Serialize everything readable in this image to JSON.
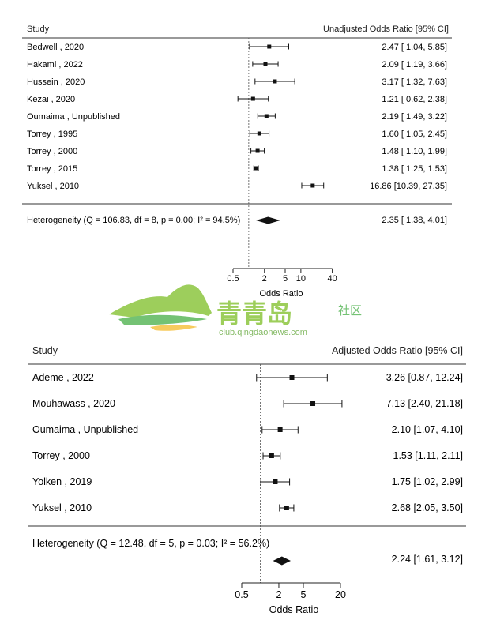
{
  "chart_data": [
    {
      "type": "forest",
      "scale": "log",
      "header_study": "Study",
      "header_effect": "Unadjusted Odds Ratio [95% CI]",
      "xlabel": "Odds Ratio",
      "xticks": [
        0.5,
        2,
        5,
        10,
        40
      ],
      "xtick_labels": [
        "0.5",
        "2",
        "5",
        "10",
        "40"
      ],
      "null_line": 1,
      "studies": [
        {
          "label": "Bedwell , 2020",
          "or": 2.47,
          "lo": 1.04,
          "hi": 5.85,
          "text": "2.47 [ 1.04,  5.85]"
        },
        {
          "label": "Hakami , 2022",
          "or": 2.09,
          "lo": 1.19,
          "hi": 3.66,
          "text": "2.09 [ 1.19,  3.66]"
        },
        {
          "label": "Hussein , 2020",
          "or": 3.17,
          "lo": 1.32,
          "hi": 7.63,
          "text": "3.17 [ 1.32,  7.63]"
        },
        {
          "label": "Kezai , 2020",
          "or": 1.21,
          "lo": 0.62,
          "hi": 2.38,
          "text": "1.21 [ 0.62,  2.38]"
        },
        {
          "label": "Oumaima , Unpublished",
          "or": 2.19,
          "lo": 1.49,
          "hi": 3.22,
          "text": "2.19 [ 1.49,  3.22]"
        },
        {
          "label": "Torrey , 1995",
          "or": 1.6,
          "lo": 1.05,
          "hi": 2.45,
          "text": "1.60 [ 1.05,  2.45]"
        },
        {
          "label": "Torrey , 2000",
          "or": 1.48,
          "lo": 1.1,
          "hi": 1.99,
          "text": "1.48 [ 1.10,  1.99]"
        },
        {
          "label": "Torrey , 2015",
          "or": 1.38,
          "lo": 1.25,
          "hi": 1.53,
          "text": "1.38 [ 1.25,  1.53]"
        },
        {
          "label": "Yuksel , 2010",
          "or": 16.86,
          "lo": 10.39,
          "hi": 27.35,
          "text": "16.86 [10.39, 27.35]"
        }
      ],
      "summary": {
        "label": "Heterogeneity (Q = 106.83, df = 8, p = 0.00; I² = 94.5%)",
        "or": 2.35,
        "lo": 1.38,
        "hi": 4.01,
        "text": "2.35 [ 1.38,  4.01]"
      }
    },
    {
      "type": "forest",
      "scale": "log",
      "header_study": "Study",
      "header_effect": "Adjusted Odds Ratio [95% CI]",
      "xlabel": "Odds Ratio",
      "xticks": [
        0.5,
        2,
        5,
        20
      ],
      "xtick_labels": [
        "0.5",
        "2",
        "5",
        "20"
      ],
      "null_line": 1,
      "studies": [
        {
          "label": "Ademe , 2022",
          "or": 3.26,
          "lo": 0.87,
          "hi": 12.24,
          "text": "3.26 [0.87, 12.24]"
        },
        {
          "label": "Mouhawass , 2020",
          "or": 7.13,
          "lo": 2.4,
          "hi": 21.18,
          "text": "7.13 [2.40, 21.18]"
        },
        {
          "label": "Oumaima , Unpublished",
          "or": 2.1,
          "lo": 1.07,
          "hi": 4.1,
          "text": "2.10 [1.07,  4.10]"
        },
        {
          "label": "Torrey , 2000",
          "or": 1.53,
          "lo": 1.11,
          "hi": 2.11,
          "text": "1.53 [1.11,  2.11]"
        },
        {
          "label": "Yolken , 2019",
          "or": 1.75,
          "lo": 1.02,
          "hi": 2.99,
          "text": "1.75 [1.02,  2.99]"
        },
        {
          "label": "Yuksel , 2010",
          "or": 2.68,
          "lo": 2.05,
          "hi": 3.5,
          "text": "2.68 [2.05,  3.50]"
        }
      ],
      "summary": {
        "label": "Heterogeneity (Q = 12.48, df = 5, p = 0.03; I² = 56.2%)",
        "or": 2.24,
        "lo": 1.61,
        "hi": 3.12,
        "text": "2.24 [1.61,  3.12]"
      }
    }
  ],
  "watermark": {
    "title": "青青岛",
    "suffix": "社区",
    "url": "club.qingdaonews.com",
    "colors": {
      "green": "#8cc63f",
      "dark": "#3a9b3a",
      "sun": "#f6c342"
    }
  }
}
